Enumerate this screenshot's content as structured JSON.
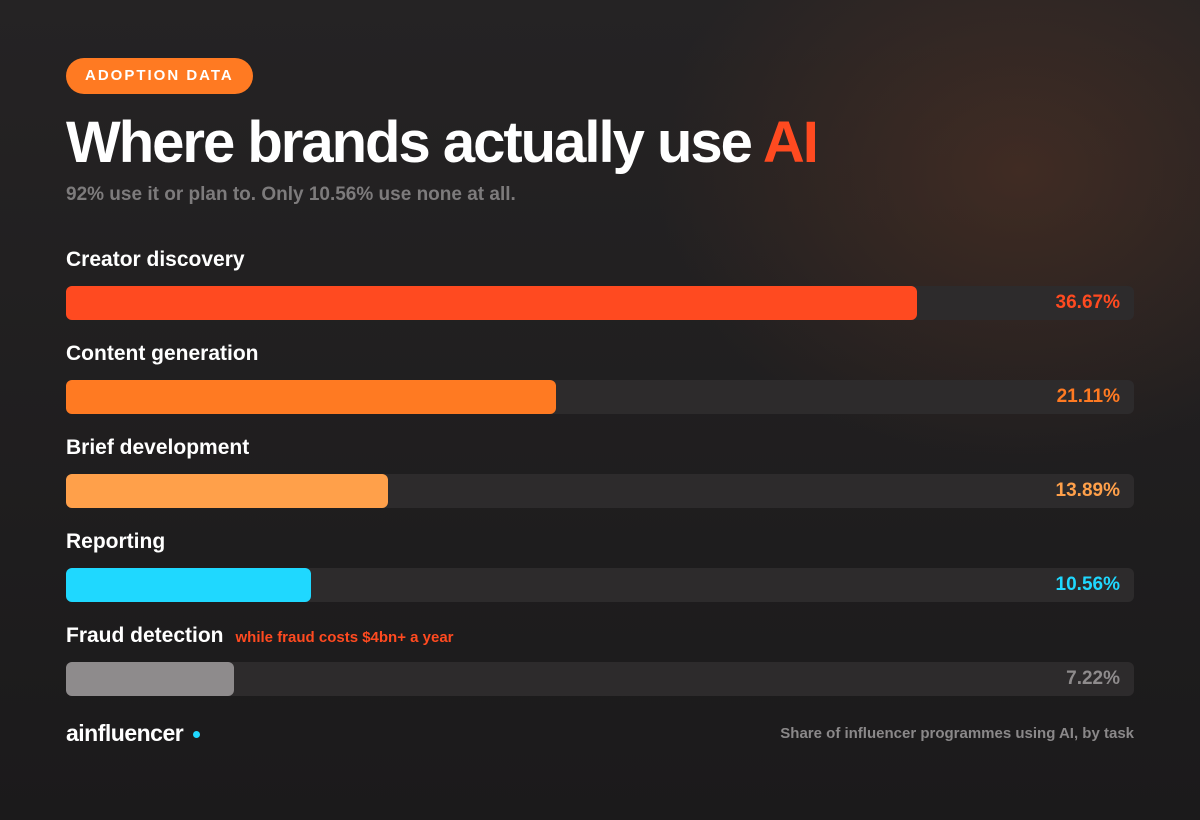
{
  "badge": "ADOPTION DATA",
  "title_main": "Where brands actually use ",
  "title_accent": "AI",
  "subtitle": "92% use it or plan to. Only 10.56% use none at all.",
  "colors": {
    "accent": "#ff4a20",
    "badge": "#ff7a22",
    "track": "#2d2b2c"
  },
  "chart_data": {
    "type": "bar",
    "orientation": "horizontal",
    "value_format": "percent",
    "xlim": [
      0,
      46
    ],
    "grid": false,
    "categories": [
      "Creator discovery",
      "Content generation",
      "Brief development",
      "Reporting",
      "Fraud detection"
    ],
    "values": [
      36.67,
      21.11,
      13.89,
      10.56,
      7.22
    ],
    "value_labels": [
      "36.67%",
      "21.11%",
      "13.89%",
      "10.56%",
      "7.22%"
    ],
    "bar_colors": [
      "#ff4a20",
      "#ff7a22",
      "#ffa04a",
      "#1fd8ff",
      "#8e8b8c"
    ],
    "label_colors": [
      "#ff4a20",
      "#ff7a22",
      "#ffa04a",
      "#1fd8ff",
      "#8e8b8c"
    ],
    "annotations": [
      {
        "category": "Fraud detection",
        "text": "while fraud costs $4bn+ a year"
      }
    ]
  },
  "footer": {
    "brand": "ainfluencer",
    "caption": "Share of influencer programmes using AI, by task"
  }
}
